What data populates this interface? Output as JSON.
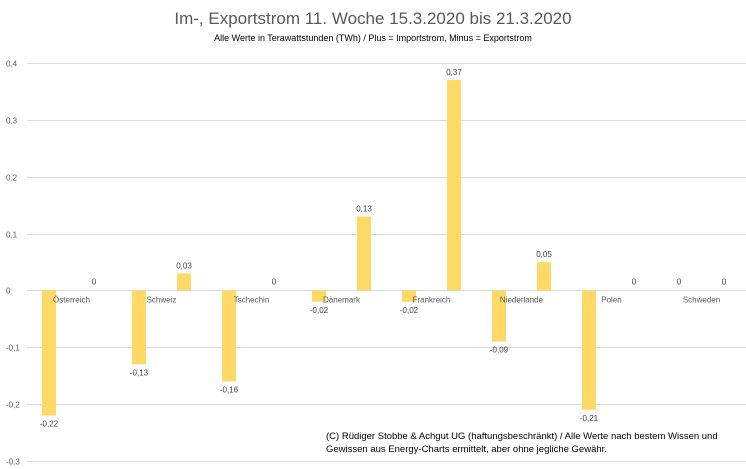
{
  "chart_data": {
    "type": "bar",
    "title": "Im-, Exportstrom 11. Woche 15.3.2020 bis 21.3.2020",
    "subtitle": "Alle Werte in Terawattstunden (TWh) / Plus = Importstrom, Minus = Exportstrom",
    "categories": [
      "Österreich",
      "Schweiz",
      "Tschechin",
      "Dänemark",
      "Frankreich",
      "Niederlande",
      "Polen",
      "Schweden"
    ],
    "series": [
      {
        "name": "Export",
        "values": [
          -0.22,
          -0.13,
          -0.16,
          -0.02,
          -0.02,
          -0.09,
          -0.21,
          0
        ]
      },
      {
        "name": "Import",
        "values": [
          0,
          0.03,
          0,
          0.13,
          0.37,
          0.05,
          0,
          0
        ]
      }
    ],
    "data_labels": [
      [
        "-0,22",
        "-0,13",
        "-0,16",
        "-0,02",
        "-0,02",
        "-0,09",
        "-0,21",
        "0"
      ],
      [
        "0",
        "0,03",
        "0",
        "0,13",
        "0,37",
        "0,05",
        "0",
        "0"
      ]
    ],
    "y_ticks": [
      0.4,
      0.3,
      0.2,
      0.1,
      0,
      -0.1,
      -0.2,
      -0.3
    ],
    "y_tick_labels": [
      "0,4",
      "0,3",
      "0,2",
      "0,1",
      "0",
      "-0,1",
      "-0,2",
      "-0,3"
    ],
    "ylim": [
      -0.3,
      0.4
    ],
    "xlabel": "",
    "ylabel": "",
    "grid": true,
    "legend": "none",
    "bar_color": "#FFD966"
  },
  "note": {
    "line1": "(C) Rüdiger Stobbe & Achgut UG (haftungsbeschränkt) / Alle Werte nach bestem Wissen und",
    "line2": "Gewissen aus Energy-Charts ermittelt, aber ohne jegliche Gewähr."
  }
}
